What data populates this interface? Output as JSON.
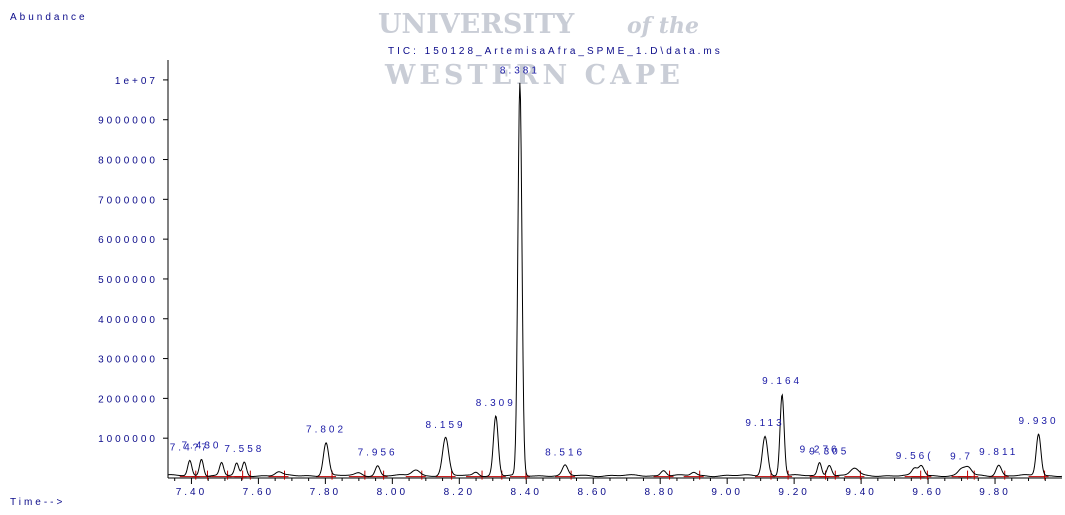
{
  "watermark": {
    "line1": "UNIVERSITY",
    "line1_suffix": "of the",
    "line2": "WESTERN CAPE"
  },
  "colors": {
    "trace": "#000000",
    "text": "#0b0b8a",
    "peak_label": "#1a1aa6",
    "baseline_marks": "#c00000",
    "watermark": "#c9cdd6"
  },
  "chart_data": {
    "type": "line",
    "title": "TIC: 150128_ArtemisaAfra_SPME_1.D\\data.ms",
    "ylabel": "Abundance",
    "xlabel": "Time-->",
    "xlim": [
      7.33,
      10.0
    ],
    "ylim": [
      0,
      10500000
    ],
    "y_ticks": [
      {
        "value": 10000000,
        "label": "1e+07"
      },
      {
        "value": 9000000,
        "label": "9000000"
      },
      {
        "value": 8000000,
        "label": "8000000"
      },
      {
        "value": 7000000,
        "label": "7000000"
      },
      {
        "value": 6000000,
        "label": "6000000"
      },
      {
        "value": 5000000,
        "label": "5000000"
      },
      {
        "value": 4000000,
        "label": "4000000"
      },
      {
        "value": 3000000,
        "label": "3000000"
      },
      {
        "value": 2000000,
        "label": "2000000"
      },
      {
        "value": 1000000,
        "label": "1000000"
      }
    ],
    "x_ticks": [
      {
        "value": 7.4,
        "label": "7.40"
      },
      {
        "value": 7.6,
        "label": "7.60"
      },
      {
        "value": 7.8,
        "label": "7.80"
      },
      {
        "value": 8.0,
        "label": "8.00"
      },
      {
        "value": 8.2,
        "label": "8.20"
      },
      {
        "value": 8.4,
        "label": "8.40"
      },
      {
        "value": 8.6,
        "label": "8.60"
      },
      {
        "value": 8.8,
        "label": "8.80"
      },
      {
        "value": 9.0,
        "label": "9.00"
      },
      {
        "value": 9.2,
        "label": "9.20"
      },
      {
        "value": 9.4,
        "label": "9.40"
      },
      {
        "value": 9.6,
        "label": "9.60"
      },
      {
        "value": 9.8,
        "label": "9.80"
      }
    ],
    "baseline": 60000,
    "peaks": [
      {
        "rt": 7.395,
        "height": 380000,
        "width": 0.006,
        "label": "7.4?7"
      },
      {
        "rt": 7.43,
        "height": 430000,
        "width": 0.006,
        "label": "7.430"
      },
      {
        "rt": 7.49,
        "height": 320000,
        "width": 0.006,
        "label": ""
      },
      {
        "rt": 7.535,
        "height": 300000,
        "width": 0.006,
        "label": ""
      },
      {
        "rt": 7.558,
        "height": 340000,
        "width": 0.006,
        "label": "7.558"
      },
      {
        "rt": 7.66,
        "height": 90000,
        "width": 0.01,
        "label": ""
      },
      {
        "rt": 7.802,
        "height": 830000,
        "width": 0.008,
        "label": "7.802"
      },
      {
        "rt": 7.9,
        "height": 70000,
        "width": 0.01,
        "label": ""
      },
      {
        "rt": 7.956,
        "height": 250000,
        "width": 0.007,
        "label": "7.956"
      },
      {
        "rt": 8.07,
        "height": 150000,
        "width": 0.012,
        "label": ""
      },
      {
        "rt": 8.159,
        "height": 950000,
        "width": 0.009,
        "label": "8.159"
      },
      {
        "rt": 8.25,
        "height": 90000,
        "width": 0.008,
        "label": ""
      },
      {
        "rt": 8.309,
        "height": 1500000,
        "width": 0.007,
        "label": "8.309"
      },
      {
        "rt": 8.381,
        "height": 9850000,
        "width": 0.006,
        "label": "8.381"
      },
      {
        "rt": 8.516,
        "height": 250000,
        "width": 0.008,
        "label": "8.516"
      },
      {
        "rt": 8.81,
        "height": 140000,
        "width": 0.008,
        "label": ""
      },
      {
        "rt": 8.9,
        "height": 80000,
        "width": 0.008,
        "label": ""
      },
      {
        "rt": 9.113,
        "height": 1000000,
        "width": 0.008,
        "label": "9.113"
      },
      {
        "rt": 9.164,
        "height": 2050000,
        "width": 0.006,
        "label": "9.164"
      },
      {
        "rt": 9.276,
        "height": 330000,
        "width": 0.006,
        "label": "9.276"
      },
      {
        "rt": 9.305,
        "height": 280000,
        "width": 0.007,
        "label": "9.305"
      },
      {
        "rt": 9.38,
        "height": 180000,
        "width": 0.012,
        "label": ""
      },
      {
        "rt": 9.56,
        "height": 170000,
        "width": 0.008,
        "label": "9.56("
      },
      {
        "rt": 9.58,
        "height": 250000,
        "width": 0.008,
        "label": ""
      },
      {
        "rt": 9.7,
        "height": 150000,
        "width": 0.01,
        "label": "9.7"
      },
      {
        "rt": 9.72,
        "height": 200000,
        "width": 0.01,
        "label": ""
      },
      {
        "rt": 9.811,
        "height": 270000,
        "width": 0.008,
        "label": "9.811"
      },
      {
        "rt": 9.93,
        "height": 1050000,
        "width": 0.007,
        "label": "9.930"
      }
    ],
    "grid": false,
    "legend": "none"
  }
}
